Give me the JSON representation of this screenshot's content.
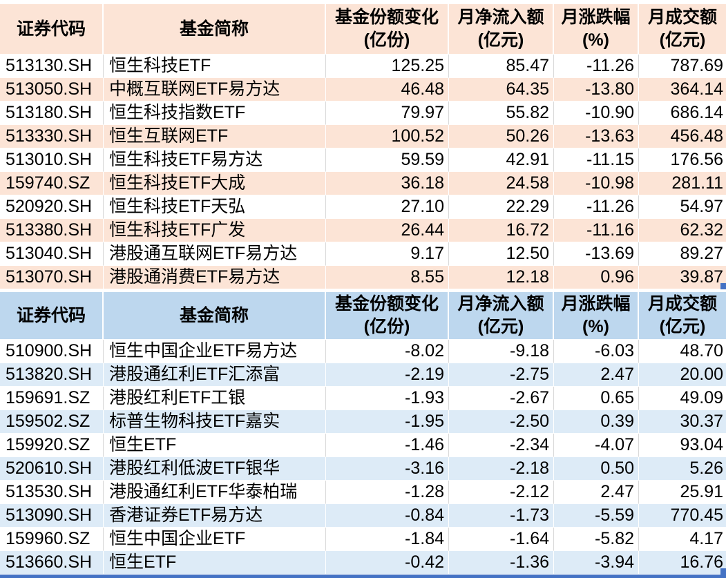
{
  "colors": {
    "inflow_fill": "#FCE4D6",
    "outflow_header_fill": "#BDD7EE",
    "outflow_row_fill": "#DDEBF7",
    "gridline": "#D9D9D9",
    "accent_bar": "#4472C4",
    "text": "#000000",
    "row_white": "#FFFFFF"
  },
  "column_headers": [
    {
      "title": "证券代码",
      "unit": ""
    },
    {
      "title": "基金简称",
      "unit": ""
    },
    {
      "title": "基金份额变化",
      "unit": "(亿份)"
    },
    {
      "title": "月净流入额",
      "unit": "(亿元)"
    },
    {
      "title": "月涨跌幅",
      "unit": "(%)"
    },
    {
      "title": "月成交额",
      "unit": "(亿元)"
    }
  ],
  "tables": [
    {
      "id": "inflow",
      "rows": [
        [
          "513130.SH",
          "恒生科技ETF",
          "125.25",
          "85.47",
          "-11.26",
          "787.69"
        ],
        [
          "513050.SH",
          "中概互联网ETF易方达",
          "46.48",
          "64.35",
          "-13.80",
          "364.14"
        ],
        [
          "513180.SH",
          "恒生科技指数ETF",
          "79.97",
          "55.82",
          "-10.90",
          "686.14"
        ],
        [
          "513330.SH",
          "恒生互联网ETF",
          "100.52",
          "50.26",
          "-13.63",
          "456.48"
        ],
        [
          "513010.SH",
          "恒生科技ETF易方达",
          "59.59",
          "42.91",
          "-11.15",
          "176.56"
        ],
        [
          "159740.SZ",
          "恒生科技ETF大成",
          "36.18",
          "24.58",
          "-10.98",
          "281.11"
        ],
        [
          "520920.SH",
          "恒生科技ETF天弘",
          "27.10",
          "22.29",
          "-11.26",
          "54.97"
        ],
        [
          "513380.SH",
          "恒生科技ETF广发",
          "26.44",
          "16.72",
          "-11.16",
          "62.32"
        ],
        [
          "513040.SH",
          "港股通互联网ETF易方达",
          "9.17",
          "12.50",
          "-13.69",
          "89.27"
        ],
        [
          "513070.SH",
          "港股通消费ETF易方达",
          "8.55",
          "12.18",
          "0.96",
          "39.87"
        ]
      ]
    },
    {
      "id": "outflow",
      "rows": [
        [
          "510900.SH",
          "恒生中国企业ETF易方达",
          "-8.02",
          "-9.18",
          "-6.03",
          "48.70"
        ],
        [
          "513820.SH",
          "港股通红利ETF汇添富",
          "-2.19",
          "-2.75",
          "2.47",
          "20.00"
        ],
        [
          "159691.SZ",
          "港股红利ETF工银",
          "-1.93",
          "-2.67",
          "0.65",
          "49.09"
        ],
        [
          "159502.SZ",
          "标普生物科技ETF嘉实",
          "-1.95",
          "-2.50",
          "0.39",
          "30.37"
        ],
        [
          "159920.SZ",
          "恒生ETF",
          "-1.46",
          "-2.34",
          "-4.07",
          "93.04"
        ],
        [
          "520610.SH",
          "港股红利低波ETF银华",
          "-3.16",
          "-2.18",
          "0.50",
          "5.26"
        ],
        [
          "513530.SH",
          "港股通红利ETF华泰柏瑞",
          "-1.28",
          "-2.12",
          "2.47",
          "25.91"
        ],
        [
          "513090.SH",
          "香港证券ETF易方达",
          "-0.84",
          "-1.73",
          "-5.59",
          "770.45"
        ],
        [
          "159960.SZ",
          "恒生中国企业ETF",
          "-1.84",
          "-1.64",
          "-5.82",
          "4.17"
        ],
        [
          "513660.SH",
          "恒生ETF",
          "-0.42",
          "-1.36",
          "-3.94",
          "16.76"
        ]
      ]
    }
  ]
}
